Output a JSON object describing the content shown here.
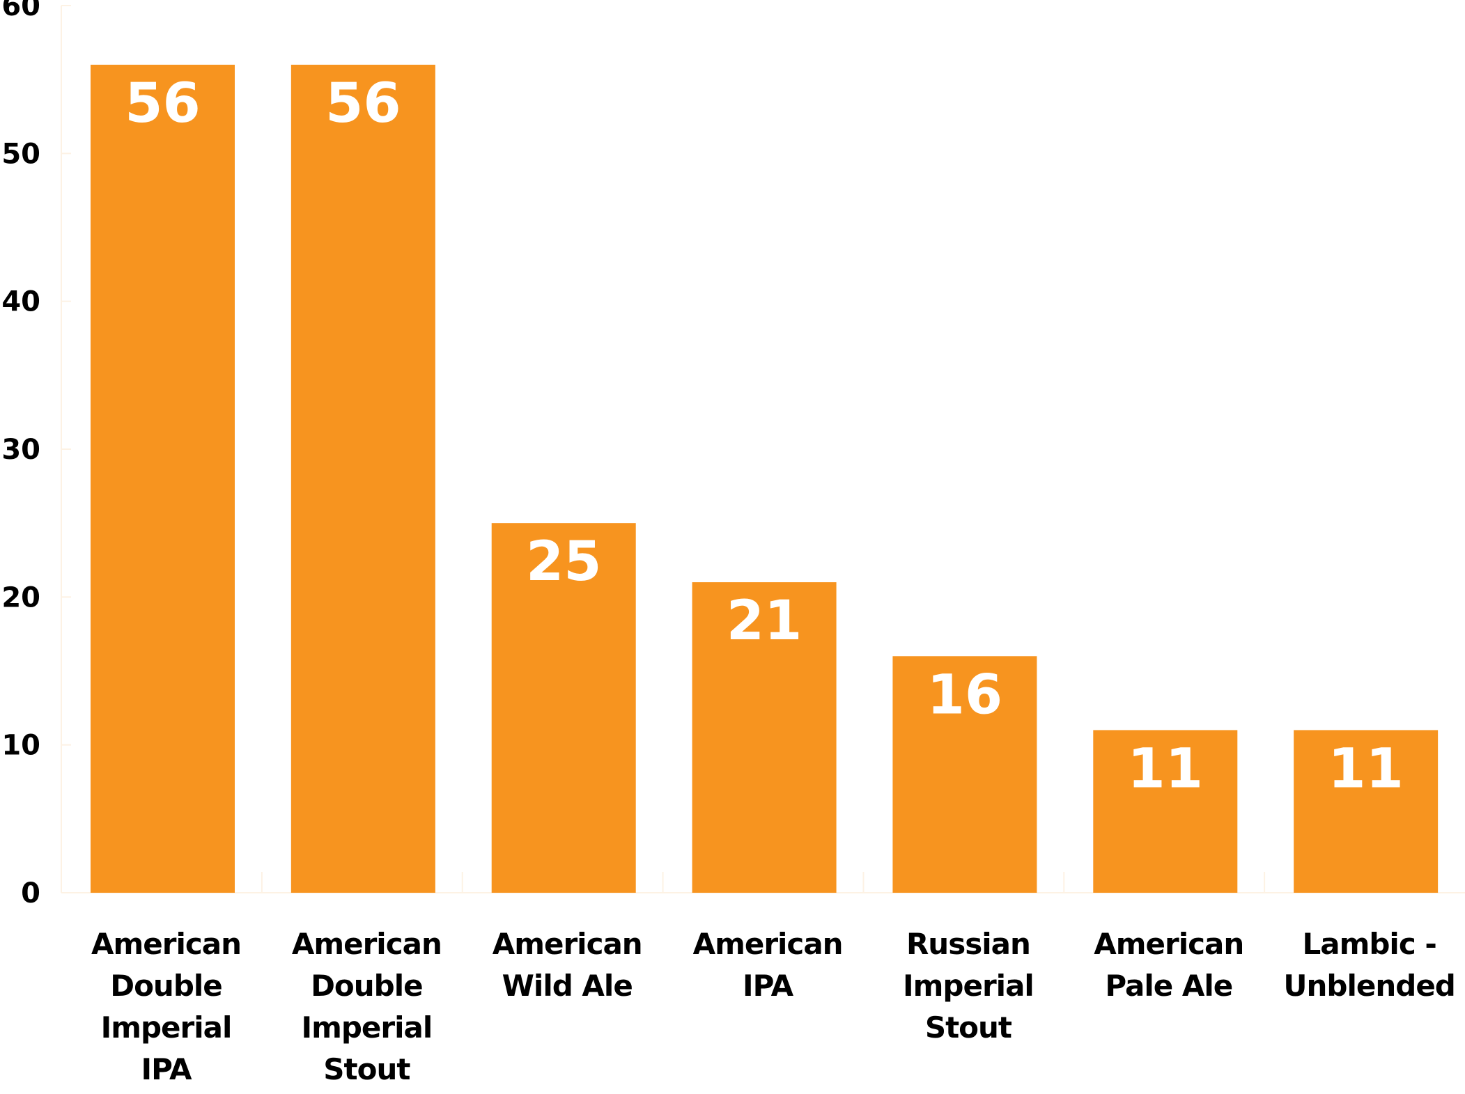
{
  "chart_data": {
    "type": "bar",
    "categories": [
      [
        "American",
        "Double",
        "Imperial",
        "IPA"
      ],
      [
        "American",
        "Double",
        "Imperial",
        "Stout"
      ],
      [
        "American",
        "Wild Ale"
      ],
      [
        "American",
        "IPA"
      ],
      [
        "Russian",
        "Imperial",
        "Stout"
      ],
      [
        "American",
        "Pale Ale"
      ],
      [
        "Lambic -",
        "Unblended"
      ]
    ],
    "values": [
      56,
      56,
      25,
      21,
      16,
      11,
      11
    ],
    "value_labels": [
      "56",
      "56",
      "25",
      "21",
      "16",
      "11",
      "11"
    ],
    "yticks": [
      "0",
      "10",
      "20",
      "30",
      "40",
      "50",
      "60"
    ],
    "ylim": [
      0,
      60
    ],
    "title": "",
    "xlabel": "",
    "ylabel": "",
    "grid": false,
    "colors": {
      "bar": "#F7941F",
      "value_text": "#FFFFFF",
      "axis_text": "#000000",
      "axis_line": "#FDF2E4"
    }
  }
}
